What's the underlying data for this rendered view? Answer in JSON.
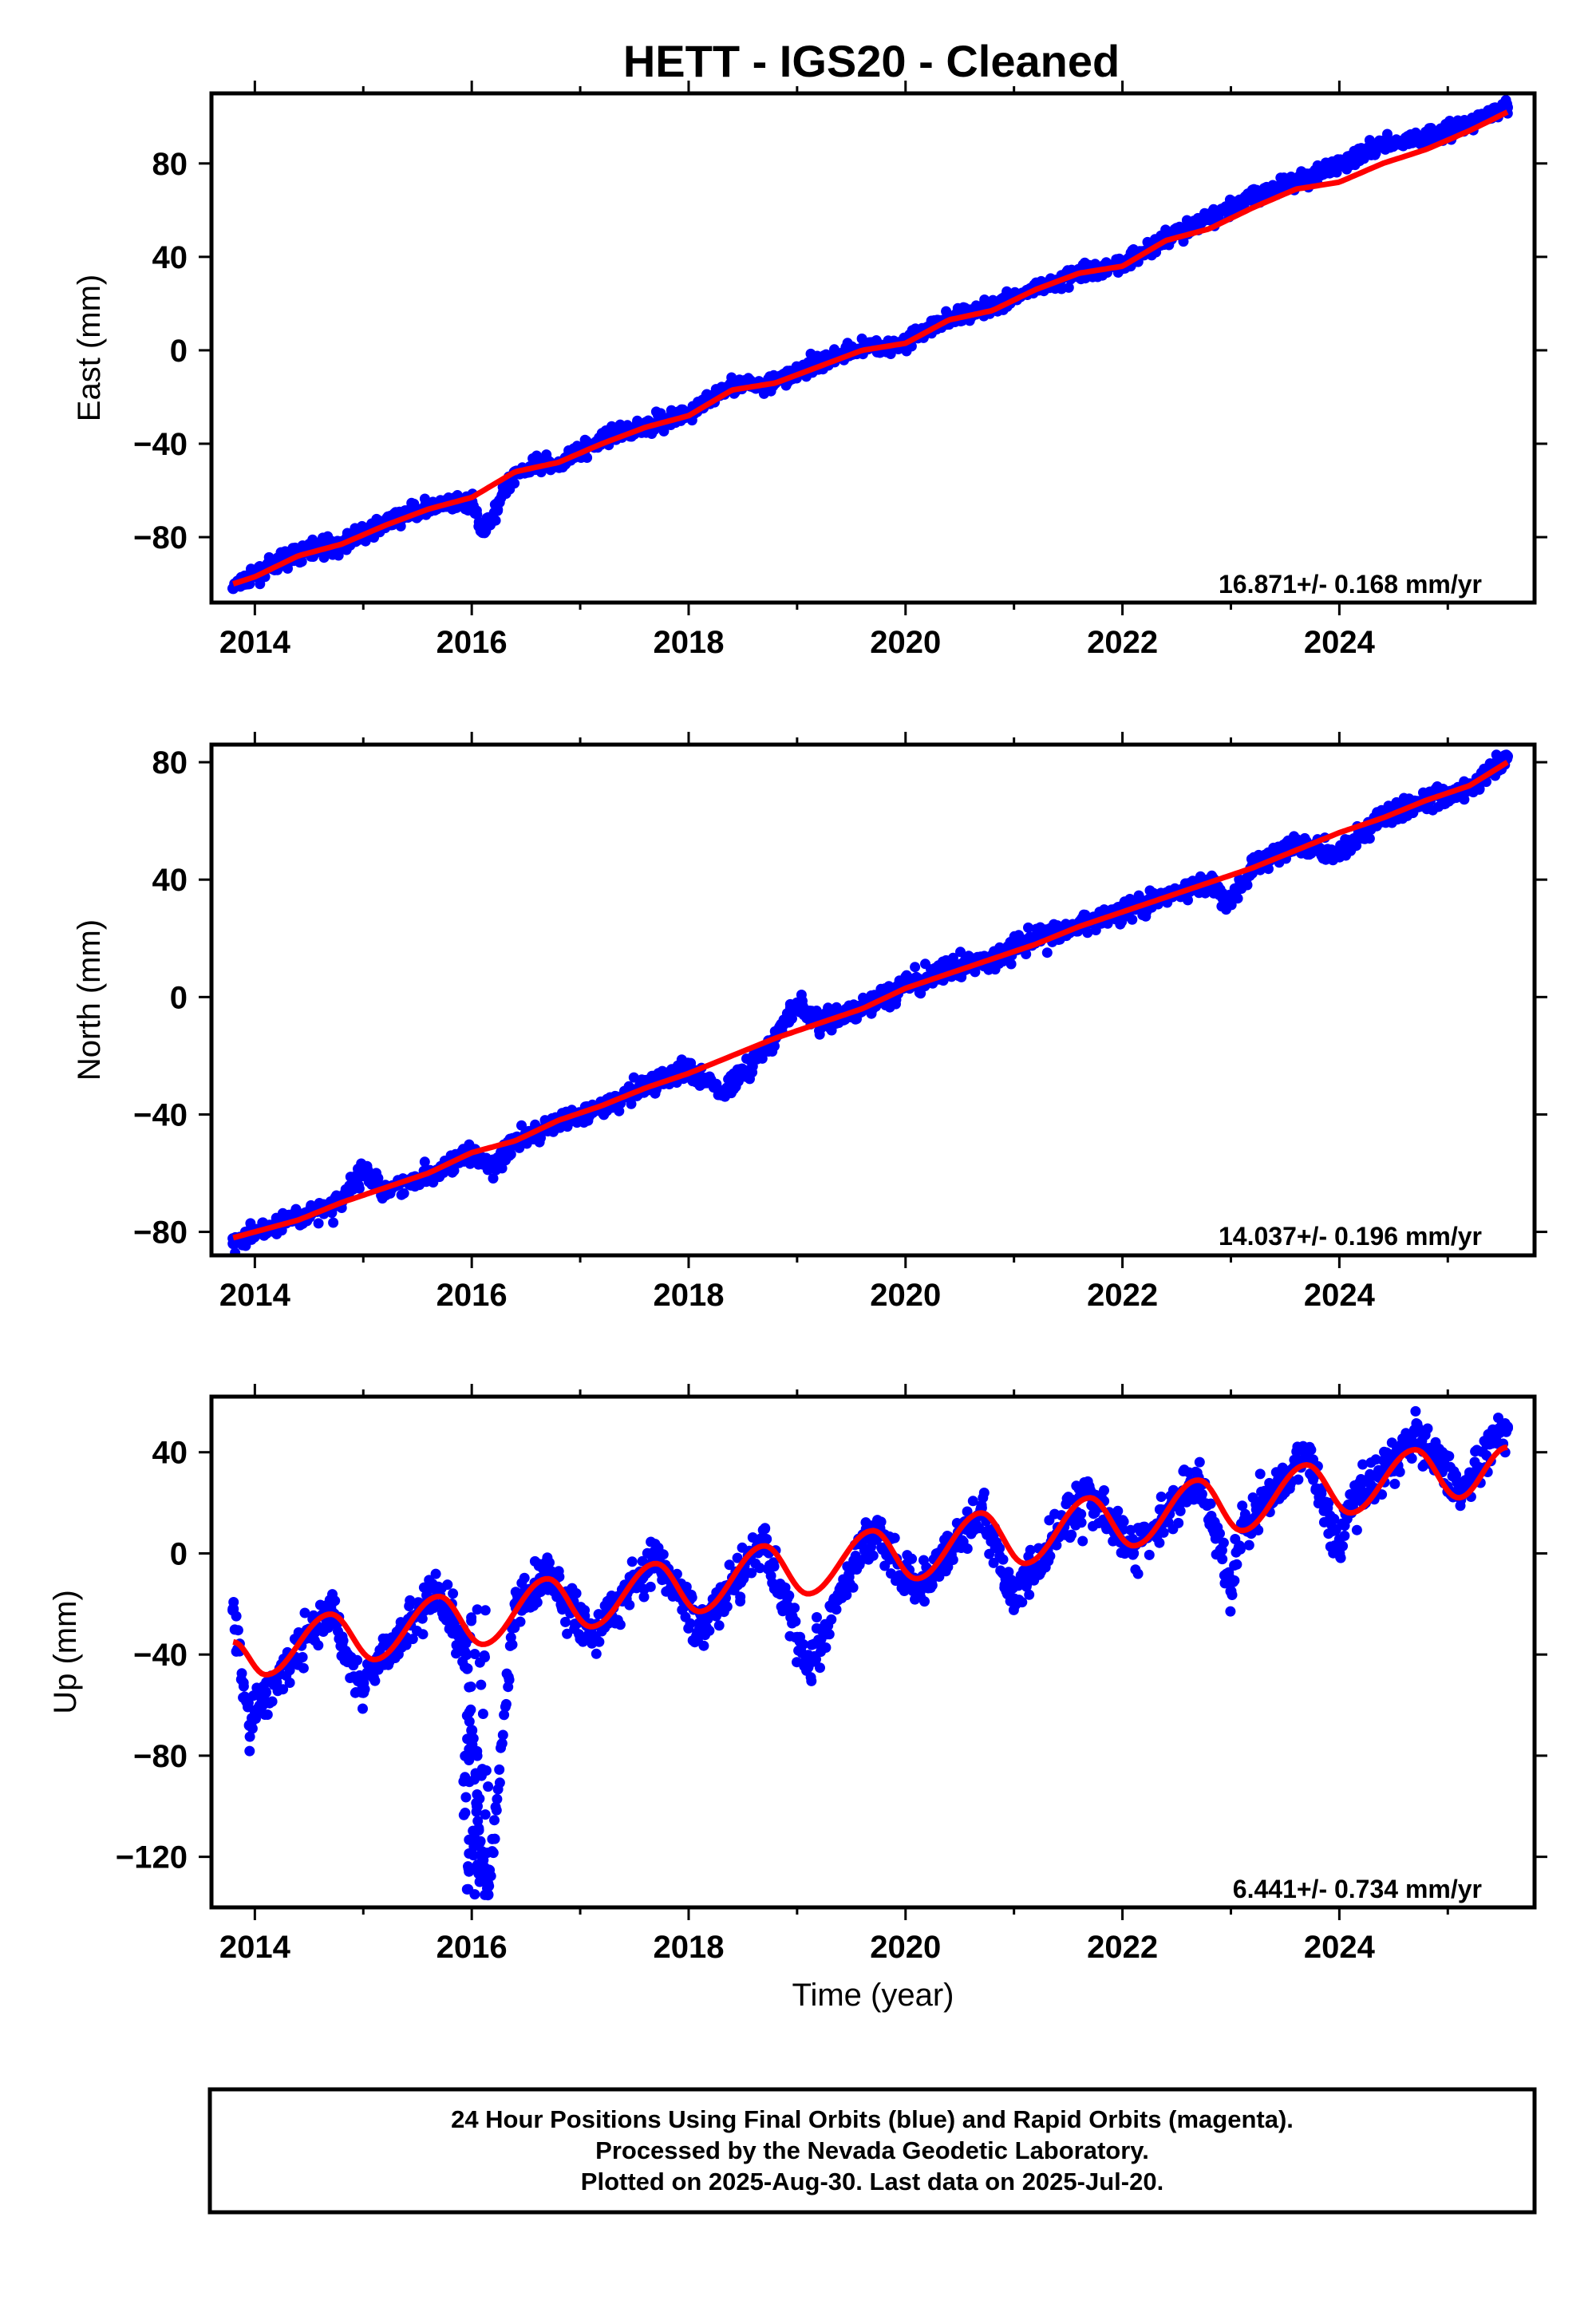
{
  "title": "HETT  - IGS20 - Cleaned",
  "colors": {
    "final_orbits": "#0000ff",
    "model_fit": "#ff0000",
    "frame": "#000000"
  },
  "chart_data": [
    {
      "type": "scatter",
      "component": "east",
      "ylabel": "East (mm)",
      "xlabel": "",
      "xlim": [
        2013.6,
        2025.8
      ],
      "ylim": [
        -108,
        110
      ],
      "xticks": [
        2014,
        2016,
        2018,
        2020,
        2022,
        2024
      ],
      "xtick_labels": [
        "2014",
        "2016",
        "2018",
        "2020",
        "2022",
        "2024"
      ],
      "yticks": [
        -80,
        -40,
        0,
        40,
        80
      ],
      "ytick_labels": [
        "−80",
        "−40",
        "0",
        "40",
        "80"
      ],
      "rate": "16.871+/- 0.168 mm/yr",
      "series": [
        {
          "role": "model",
          "x": [
            2013.8,
            2014.0,
            2014.4,
            2014.8,
            2015.2,
            2015.6,
            2016.0,
            2016.4,
            2016.8,
            2017.2,
            2017.6,
            2018.0,
            2018.4,
            2018.8,
            2019.2,
            2019.6,
            2020.0,
            2020.4,
            2020.8,
            2021.2,
            2021.6,
            2022.0,
            2022.4,
            2022.8,
            2023.2,
            2023.6,
            2024.0,
            2024.4,
            2024.8,
            2025.2,
            2025.55
          ],
          "y": [
            -100,
            -97,
            -88,
            -83,
            -75,
            -68,
            -63,
            -52,
            -48,
            -40,
            -33,
            -28,
            -17,
            -14,
            -7,
            0,
            3,
            13,
            17,
            26,
            33,
            36,
            47,
            52,
            61,
            69,
            72,
            80,
            86,
            94,
            102
          ]
        },
        {
          "role": "observed",
          "x": [
            2013.8,
            2014.0,
            2014.4,
            2014.8,
            2015.2,
            2015.6,
            2016.0,
            2016.1,
            2016.4,
            2016.8,
            2017.2,
            2017.6,
            2018.0,
            2018.4,
            2018.8,
            2019.2,
            2019.6,
            2020.0,
            2020.4,
            2020.8,
            2021.2,
            2021.6,
            2022.0,
            2022.4,
            2022.8,
            2023.2,
            2023.6,
            2024.0,
            2024.4,
            2024.8,
            2025.2,
            2025.55
          ],
          "y": [
            -102,
            -96,
            -87,
            -83,
            -74,
            -67,
            -65,
            -78,
            -52,
            -48,
            -38,
            -32,
            -27,
            -15,
            -14,
            -5,
            1,
            3,
            14,
            18,
            27,
            33,
            37,
            48,
            56,
            66,
            73,
            79,
            88,
            91,
            97,
            104
          ]
        }
      ]
    },
    {
      "type": "scatter",
      "component": "north",
      "ylabel": "North (mm)",
      "xlabel": "",
      "xlim": [
        2013.6,
        2025.8
      ],
      "ylim": [
        -88,
        86
      ],
      "xticks": [
        2014,
        2016,
        2018,
        2020,
        2022,
        2024
      ],
      "xtick_labels": [
        "2014",
        "2016",
        "2018",
        "2020",
        "2022",
        "2024"
      ],
      "yticks": [
        -80,
        -40,
        0,
        40,
        80
      ],
      "ytick_labels": [
        "−80",
        "−40",
        "0",
        "40",
        "80"
      ],
      "rate": "14.037+/- 0.196 mm/yr",
      "series": [
        {
          "role": "model",
          "x": [
            2013.8,
            2014.0,
            2014.4,
            2014.8,
            2015.2,
            2015.6,
            2016.0,
            2016.4,
            2016.8,
            2017.2,
            2017.6,
            2018.0,
            2018.4,
            2018.8,
            2019.2,
            2019.6,
            2020.0,
            2020.4,
            2020.8,
            2021.2,
            2021.6,
            2022.0,
            2022.4,
            2022.8,
            2023.2,
            2023.6,
            2024.0,
            2024.4,
            2024.8,
            2025.2,
            2025.55
          ],
          "y": [
            -82,
            -80,
            -76,
            -70,
            -65,
            -60,
            -53,
            -49,
            -42,
            -37,
            -31,
            -26,
            -20,
            -14,
            -9,
            -4,
            3,
            8,
            13,
            18,
            24,
            29,
            34,
            39,
            44,
            50,
            56,
            61,
            67,
            72,
            80
          ]
        },
        {
          "role": "observed",
          "x": [
            2013.8,
            2014.0,
            2014.4,
            2014.8,
            2015.0,
            2015.2,
            2015.6,
            2016.0,
            2016.2,
            2016.4,
            2016.8,
            2017.2,
            2017.6,
            2018.0,
            2018.3,
            2018.8,
            2019.0,
            2019.2,
            2019.6,
            2020.0,
            2020.4,
            2020.8,
            2021.2,
            2021.6,
            2022.0,
            2022.4,
            2022.8,
            2023.0,
            2023.2,
            2023.6,
            2024.0,
            2024.4,
            2024.8,
            2025.2,
            2025.55
          ],
          "y": [
            -84,
            -80,
            -75,
            -70,
            -58,
            -66,
            -60,
            -54,
            -58,
            -49,
            -42,
            -38,
            -30,
            -24,
            -33,
            -14,
            -2,
            -9,
            -4,
            4,
            9,
            13,
            20,
            24,
            30,
            34,
            39,
            33,
            45,
            52,
            48,
            62,
            67,
            71,
            82
          ]
        }
      ]
    },
    {
      "type": "scatter",
      "component": "up",
      "ylabel": "Up (mm)",
      "xlabel": "Time (year)",
      "xlim": [
        2013.6,
        2025.8
      ],
      "ylim": [
        -140,
        62
      ],
      "xticks": [
        2014,
        2016,
        2018,
        2020,
        2022,
        2024
      ],
      "xtick_labels": [
        "2014",
        "2016",
        "2018",
        "2020",
        "2022",
        "2024"
      ],
      "yticks": [
        -120,
        -80,
        -40,
        0,
        40
      ],
      "ytick_labels": [
        "−120",
        "−80",
        "−40",
        "0",
        "40"
      ],
      "rate": "6.441+/- 0.734 mm/yr",
      "series": [
        {
          "role": "model",
          "x": [
            2013.8,
            2014.1,
            2014.7,
            2015.1,
            2015.7,
            2016.1,
            2016.7,
            2017.1,
            2017.7,
            2018.1,
            2018.7,
            2019.1,
            2019.7,
            2020.1,
            2020.7,
            2021.1,
            2021.7,
            2022.1,
            2022.7,
            2023.1,
            2023.7,
            2024.1,
            2024.7,
            2025.1,
            2025.55
          ],
          "y": [
            -35,
            -48,
            -24,
            -42,
            -17,
            -36,
            -10,
            -29,
            -4,
            -23,
            3,
            -16,
            9,
            -10,
            16,
            -4,
            22,
            3,
            29,
            9,
            35,
            16,
            41,
            22,
            42
          ]
        },
        {
          "role": "observed",
          "x": [
            2013.8,
            2013.95,
            2014.1,
            2014.5,
            2014.7,
            2015.0,
            2015.1,
            2015.7,
            2015.95,
            2016.0,
            2016.05,
            2016.1,
            2016.15,
            2016.4,
            2016.7,
            2017.1,
            2017.7,
            2018.1,
            2018.7,
            2019.1,
            2019.7,
            2020.1,
            2020.7,
            2021.0,
            2021.1,
            2021.7,
            2022.1,
            2022.7,
            2023.0,
            2023.1,
            2023.7,
            2024.0,
            2024.1,
            2024.7,
            2025.1,
            2025.55
          ],
          "y": [
            -22,
            -68,
            -55,
            -30,
            -22,
            -55,
            -44,
            -15,
            -40,
            -70,
            -100,
            -120,
            -135,
            -20,
            -8,
            -33,
            -2,
            -30,
            5,
            -45,
            10,
            -15,
            18,
            -18,
            -10,
            25,
            0,
            30,
            -15,
            10,
            40,
            0,
            18,
            48,
            25,
            50
          ]
        }
      ]
    }
  ],
  "footer": {
    "line1": "24 Hour Positions Using Final Orbits (blue) and Rapid Orbits (magenta).",
    "line2": "Processed by the Nevada Geodetic Laboratory.",
    "line3": "Plotted on 2025-Aug-30. Last data on 2025-Jul-20."
  }
}
